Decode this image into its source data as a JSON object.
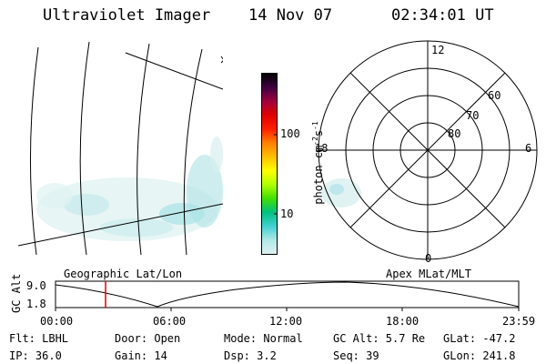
{
  "header": {
    "instrument": "Ultraviolet Imager",
    "date": "14 Nov 07",
    "time": "02:34:01 UT"
  },
  "colorbar": {
    "label": "photon cm",
    "label_sup1": "-2",
    "label_mid": "s",
    "label_sup2": "-1",
    "tick_high": "100",
    "tick_low": "10",
    "colors": [
      "#e0f0f0",
      "#b0e8e8",
      "#40d0d0",
      "#00c080",
      "#40e000",
      "#b0ff00",
      "#ffff00",
      "#ffc000",
      "#ff8000",
      "#ff2000",
      "#e00000",
      "#a00040",
      "#400040",
      "#000000"
    ]
  },
  "polar": {
    "mlt_top": "12",
    "mlt_left": "18",
    "mlt_right": "6",
    "mlt_bottom": "0",
    "lat_60": "60",
    "lat_70": "70",
    "lat_80": "80"
  },
  "timeline": {
    "label_left": "Geographic Lat/Lon",
    "label_right": "Apex MLat/MLT",
    "yaxis_label": "GC Alt",
    "y_high": "9.0",
    "y_low": "1.8",
    "ticks": [
      "00:00",
      "06:00",
      "12:00",
      "18:00",
      "23:59"
    ]
  },
  "status": {
    "filter": "Flt: LBHL",
    "ip": "IP: 36.0",
    "door": "Door: Open",
    "gain": "Gain: 14",
    "mode": "Mode: Normal",
    "dsp": "Dsp:    3.2",
    "gc_alt": "GC Alt: 5.7 Re",
    "seq": "Seq: 39",
    "glat": "GLat: -47.2",
    "glon": "GLon: 241.8"
  }
}
